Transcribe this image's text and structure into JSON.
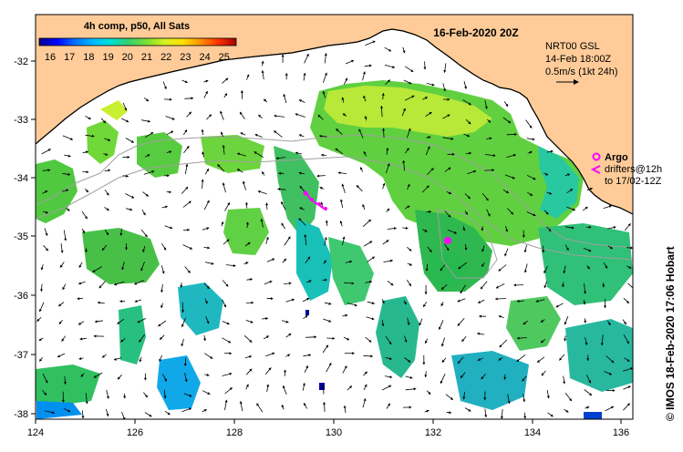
{
  "header": {
    "composite_label": "4h comp, p50, All Sats",
    "date_title": "16-Feb-2020 20Z"
  },
  "colorbar": {
    "ticks": [
      "16",
      "17",
      "18",
      "19",
      "20",
      "21",
      "22",
      "23",
      "24",
      "25"
    ],
    "colors": [
      "#00008b",
      "#0000ff",
      "#0060ff",
      "#00b0ff",
      "#00e0d0",
      "#40d060",
      "#80e030",
      "#d0f020",
      "#ffd000",
      "#ff8000",
      "#ff2000",
      "#a00000"
    ]
  },
  "current_legend": {
    "line1": "NRT00 GSL",
    "line2": "14-Feb 18:00Z",
    "line3": "0.5m/s (1kt 24h)"
  },
  "argo_legend": {
    "argo_label": "Argo",
    "drifters_line1": "drifters@12h",
    "drifters_line2": "to 17/02-12Z",
    "marker_color": "#ff00ff"
  },
  "axes": {
    "lon_ticks": [
      "124",
      "126",
      "128",
      "130",
      "132",
      "134",
      "136"
    ],
    "lat_ticks": [
      "-32",
      "-33",
      "-34",
      "-35",
      "-36",
      "-37",
      "-38"
    ],
    "lon_range": [
      124,
      136.5
    ],
    "lat_range": [
      -31.4,
      -38.1
    ]
  },
  "credit": "© IMOS 18-Feb-2020 17:06 Hobart",
  "colors": {
    "land": "#ffcc99",
    "ocean_no_data": "#ffffff",
    "arrow": "#000000",
    "isobath": "#a0a0a0"
  }
}
